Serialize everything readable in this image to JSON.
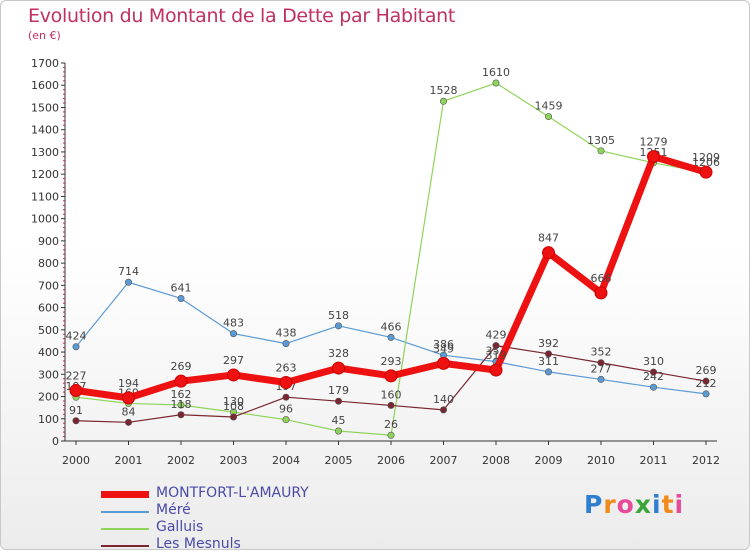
{
  "title": "Evolution du Montant de la Dette par Habitant",
  "subtitle": "(en €)",
  "logo_text": "Proxiti",
  "colors": {
    "title": "#c03060",
    "legend_text": "#4a4aa8",
    "axis": "#333333"
  },
  "chart_data": {
    "type": "line",
    "title": "Evolution du Montant de la Dette par Habitant",
    "subtitle": "(en €)",
    "xlabel": "",
    "ylabel": "",
    "ylim": [
      0,
      1700
    ],
    "yticks": [
      0,
      100,
      200,
      300,
      400,
      500,
      600,
      700,
      800,
      900,
      1000,
      1100,
      1200,
      1300,
      1400,
      1500,
      1600,
      1700
    ],
    "categories": [
      "2000",
      "2001",
      "2002",
      "2003",
      "2004",
      "2005",
      "2006",
      "2007",
      "2008",
      "2009",
      "2010",
      "2011",
      "2012"
    ],
    "grid": false,
    "legend_position": "bottom-left",
    "series": [
      {
        "name": "Méré",
        "color": "#5b9bd5",
        "values": [
          424,
          714,
          641,
          483,
          438,
          518,
          466,
          386,
          357,
          311,
          277,
          242,
          212
        ]
      },
      {
        "name": "Galluis",
        "color": "#8fd45a",
        "values": [
          197,
          169,
          162,
          130,
          96,
          45,
          26,
          1528,
          1610,
          1459,
          1305,
          1251,
          1206
        ]
      },
      {
        "name": "Les Mesnuls",
        "color": "#7a2530",
        "values": [
          91,
          84,
          118,
          108,
          197,
          179,
          160,
          140,
          429,
          392,
          352,
          310,
          269
        ]
      },
      {
        "name": "MONTFORT-L'AMAURY",
        "color": "#ee1111",
        "values": [
          227,
          194,
          269,
          297,
          263,
          328,
          293,
          349,
          319,
          847,
          666,
          1279,
          1209
        ]
      }
    ]
  }
}
